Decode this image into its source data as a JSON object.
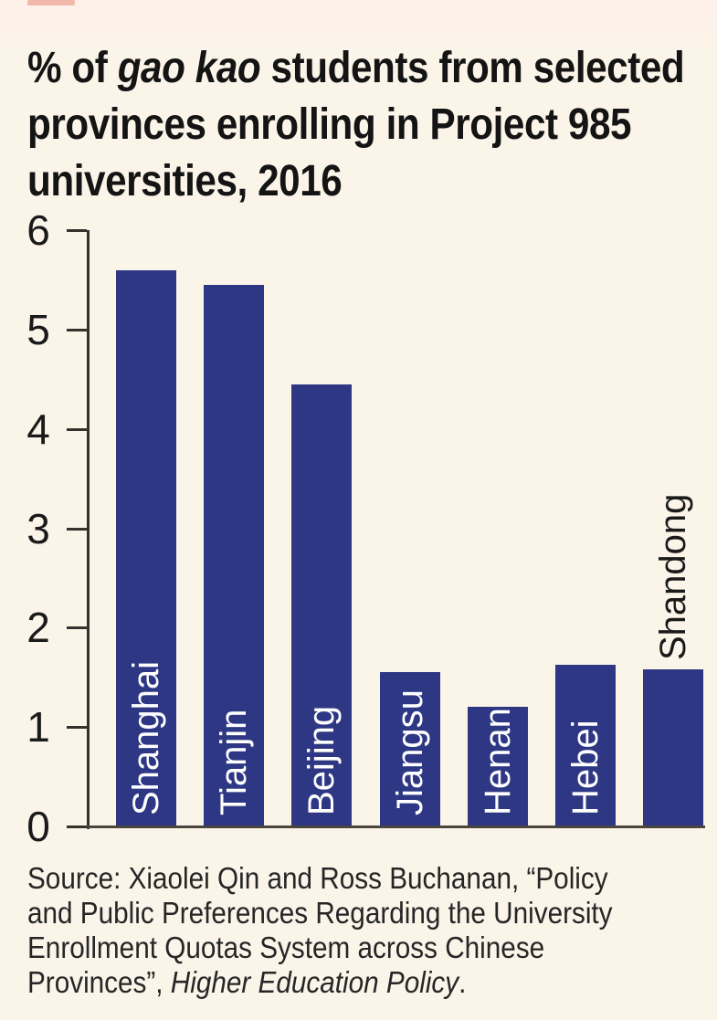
{
  "header": {
    "title_line1_prefix": "% of ",
    "title_line1_italic": "gao kao",
    "title_line1_suffix": " students from selected",
    "title_line2": "provinces enrolling in Project 985",
    "title_line3": "universities, 2016"
  },
  "chart_data": {
    "type": "bar",
    "title": "% of gao kao students from selected provinces enrolling in Project 985 universities, 2016",
    "categories": [
      "Shanghai",
      "Tianjin",
      "Beijing",
      "Jiangsu",
      "Henan",
      "Hebei",
      "Shandong"
    ],
    "values": [
      5.6,
      5.45,
      4.45,
      1.55,
      1.2,
      1.63,
      1.58
    ],
    "xlabel": "",
    "ylabel": "",
    "ylim": [
      0,
      6
    ],
    "yticks": [
      0,
      1,
      2,
      3,
      4,
      5,
      6
    ],
    "grid": false,
    "legend": "none",
    "bar_color": "#2d3784",
    "label_positions": [
      "inside",
      "inside",
      "inside",
      "inside",
      "inside",
      "inside",
      "above"
    ],
    "inside_label_color": "#ffffff",
    "above_label_color": "#1a1a1a"
  },
  "source": {
    "line1": "Source: Xiaolei Qin and Ross Buchanan, “Policy",
    "line2": "and Public Preferences Regarding the University",
    "line3": "Enrollment Quotas System across Chinese",
    "line4_prefix": "Provinces”, ",
    "line4_italic": "Higher Education Policy",
    "line4_suffix": "."
  },
  "colors": {
    "background": "#fbf4e9",
    "bar": "#2d3784",
    "accent_red": "#e2745c",
    "text": "#141414",
    "axis": "#35322e"
  }
}
